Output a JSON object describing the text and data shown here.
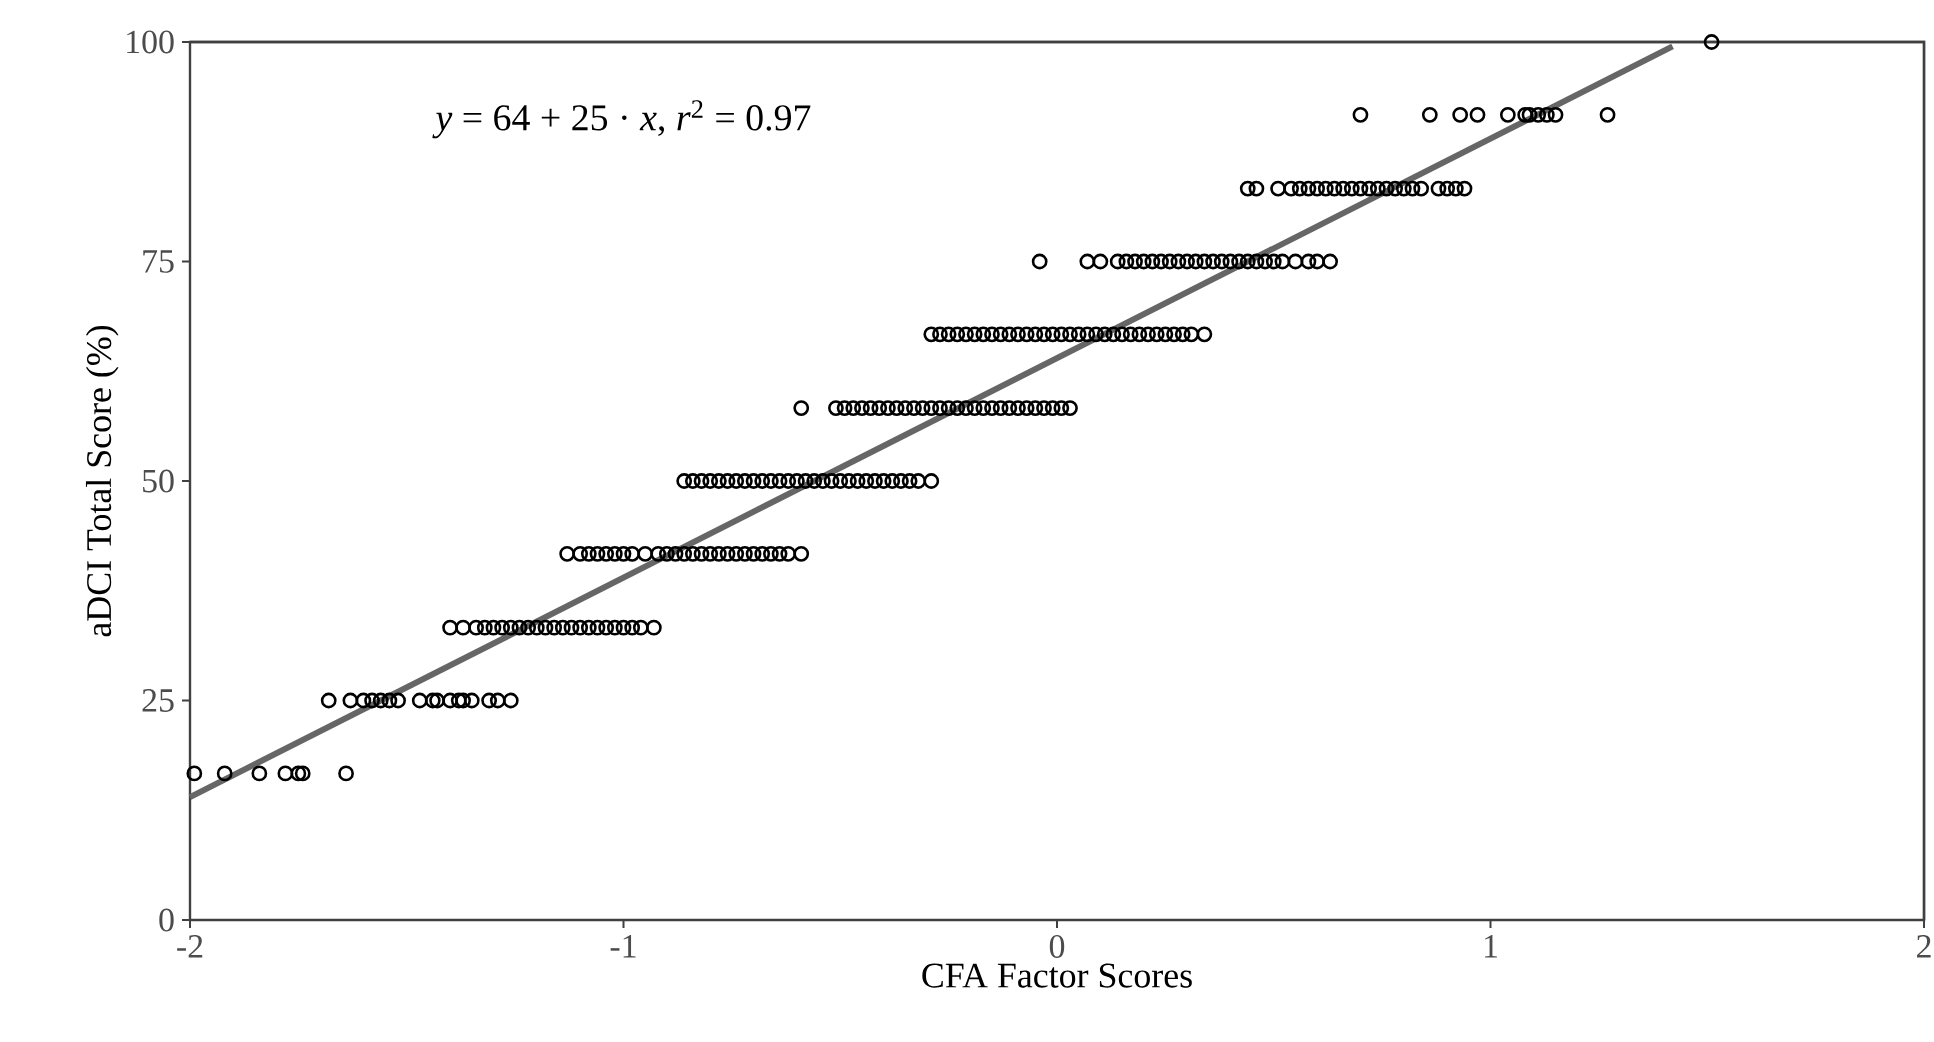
{
  "chart_data": {
    "type": "scatter",
    "xlabel": "CFA Factor Scores",
    "ylabel": "aDCI Total Score (%)",
    "annotations": [
      "*y* = 64 + 25 · *x*,  *r*$^{2}$ = 0.97"
    ],
    "xlim": [
      -2,
      2
    ],
    "ylim": [
      0,
      100
    ],
    "xticks": [
      -2,
      -1,
      0,
      1,
      2
    ],
    "yticks": [
      0,
      25,
      50,
      75,
      100
    ],
    "marker": "circle",
    "series": [
      {
        "color": "#000000",
        "x": [
          -1.99,
          -1.92,
          -1.84,
          -1.78,
          -1.75,
          -1.74,
          -1.64
        ],
        "values": [
          16.7,
          16.7,
          16.7,
          16.7,
          16.7,
          16.7,
          16.7
        ]
      },
      {
        "color": "#000000",
        "x": [
          -1.68,
          -1.63,
          -1.6,
          -1.58,
          -1.56,
          -1.54,
          -1.52,
          -1.47,
          -1.44,
          -1.43,
          -1.4,
          -1.38,
          -1.37,
          -1.35,
          -1.31,
          -1.29,
          -1.26
        ],
        "values": [
          25,
          25,
          25,
          25,
          25,
          25,
          25,
          25,
          25,
          25,
          25,
          25,
          25,
          25,
          25,
          25,
          25
        ]
      },
      {
        "color": "#000000",
        "x": [
          -1.4,
          -1.37,
          -1.34,
          -1.32,
          -1.3,
          -1.28,
          -1.26,
          -1.24,
          -1.22,
          -1.2,
          -1.18,
          -1.16,
          -1.14,
          -1.12,
          -1.1,
          -1.08,
          -1.06,
          -1.04,
          -1.02,
          -1.0,
          -0.98,
          -0.96,
          -0.93
        ],
        "values": [
          33.3,
          33.3,
          33.3,
          33.3,
          33.3,
          33.3,
          33.3,
          33.3,
          33.3,
          33.3,
          33.3,
          33.3,
          33.3,
          33.3,
          33.3,
          33.3,
          33.3,
          33.3,
          33.3,
          33.3,
          33.3,
          33.3,
          33.3
        ]
      },
      {
        "color": "#000000",
        "x": [
          -1.13,
          -1.1,
          -1.08,
          -1.06,
          -1.04,
          -1.02,
          -1.0,
          -0.98,
          -0.95,
          -0.92,
          -0.9,
          -0.88,
          -0.86,
          -0.84,
          -0.82,
          -0.8,
          -0.78,
          -0.76,
          -0.74,
          -0.72,
          -0.7,
          -0.68,
          -0.66,
          -0.64,
          -0.62,
          -0.59
        ],
        "values": [
          41.7,
          41.7,
          41.7,
          41.7,
          41.7,
          41.7,
          41.7,
          41.7,
          41.7,
          41.7,
          41.7,
          41.7,
          41.7,
          41.7,
          41.7,
          41.7,
          41.7,
          41.7,
          41.7,
          41.7,
          41.7,
          41.7,
          41.7,
          41.7,
          41.7,
          41.7
        ]
      },
      {
        "color": "#000000",
        "x": [
          -0.86,
          -0.84,
          -0.82,
          -0.8,
          -0.78,
          -0.76,
          -0.74,
          -0.72,
          -0.7,
          -0.68,
          -0.66,
          -0.64,
          -0.62,
          -0.6,
          -0.58,
          -0.56,
          -0.54,
          -0.52,
          -0.5,
          -0.48,
          -0.46,
          -0.44,
          -0.42,
          -0.4,
          -0.38,
          -0.36,
          -0.34,
          -0.32,
          -0.29
        ],
        "values": [
          50,
          50,
          50,
          50,
          50,
          50,
          50,
          50,
          50,
          50,
          50,
          50,
          50,
          50,
          50,
          50,
          50,
          50,
          50,
          50,
          50,
          50,
          50,
          50,
          50,
          50,
          50,
          50,
          50
        ]
      },
      {
        "color": "#000000",
        "x": [
          -0.59,
          -0.51,
          -0.49,
          -0.47,
          -0.45,
          -0.43,
          -0.41,
          -0.39,
          -0.37,
          -0.35,
          -0.33,
          -0.31,
          -0.29,
          -0.27,
          -0.25,
          -0.23,
          -0.21,
          -0.19,
          -0.17,
          -0.15,
          -0.13,
          -0.11,
          -0.09,
          -0.07,
          -0.05,
          -0.03,
          -0.01,
          0.01,
          0.03
        ],
        "values": [
          58.3,
          58.3,
          58.3,
          58.3,
          58.3,
          58.3,
          58.3,
          58.3,
          58.3,
          58.3,
          58.3,
          58.3,
          58.3,
          58.3,
          58.3,
          58.3,
          58.3,
          58.3,
          58.3,
          58.3,
          58.3,
          58.3,
          58.3,
          58.3,
          58.3,
          58.3,
          58.3,
          58.3,
          58.3
        ]
      },
      {
        "color": "#000000",
        "x": [
          -0.29,
          -0.27,
          -0.25,
          -0.23,
          -0.21,
          -0.19,
          -0.17,
          -0.15,
          -0.13,
          -0.11,
          -0.09,
          -0.07,
          -0.05,
          -0.03,
          -0.01,
          0.01,
          0.03,
          0.05,
          0.07,
          0.09,
          0.11,
          0.13,
          0.15,
          0.17,
          0.19,
          0.21,
          0.23,
          0.25,
          0.27,
          0.29,
          0.31,
          0.34
        ],
        "values": [
          66.7,
          66.7,
          66.7,
          66.7,
          66.7,
          66.7,
          66.7,
          66.7,
          66.7,
          66.7,
          66.7,
          66.7,
          66.7,
          66.7,
          66.7,
          66.7,
          66.7,
          66.7,
          66.7,
          66.7,
          66.7,
          66.7,
          66.7,
          66.7,
          66.7,
          66.7,
          66.7,
          66.7,
          66.7,
          66.7,
          66.7,
          66.7
        ]
      },
      {
        "color": "#000000",
        "x": [
          -0.04,
          0.07,
          0.1,
          0.14,
          0.16,
          0.18,
          0.2,
          0.22,
          0.24,
          0.26,
          0.28,
          0.3,
          0.32,
          0.34,
          0.36,
          0.38,
          0.4,
          0.42,
          0.44,
          0.46,
          0.48,
          0.5,
          0.52,
          0.55,
          0.58,
          0.6,
          0.63
        ],
        "values": [
          75,
          75,
          75,
          75,
          75,
          75,
          75,
          75,
          75,
          75,
          75,
          75,
          75,
          75,
          75,
          75,
          75,
          75,
          75,
          75,
          75,
          75,
          75,
          75,
          75,
          75,
          75
        ]
      },
      {
        "color": "#000000",
        "x": [
          0.44,
          0.46,
          0.51,
          0.54,
          0.56,
          0.58,
          0.6,
          0.62,
          0.64,
          0.66,
          0.68,
          0.7,
          0.72,
          0.74,
          0.76,
          0.78,
          0.8,
          0.82,
          0.84,
          0.88,
          0.9,
          0.92,
          0.94
        ],
        "values": [
          83.3,
          83.3,
          83.3,
          83.3,
          83.3,
          83.3,
          83.3,
          83.3,
          83.3,
          83.3,
          83.3,
          83.3,
          83.3,
          83.3,
          83.3,
          83.3,
          83.3,
          83.3,
          83.3,
          83.3,
          83.3,
          83.3,
          83.3
        ]
      },
      {
        "color": "#000000",
        "x": [
          0.7,
          0.86,
          0.93,
          0.97,
          1.04,
          1.08,
          1.09,
          1.11,
          1.13,
          1.15,
          1.27
        ],
        "values": [
          91.7,
          91.7,
          91.7,
          91.7,
          91.7,
          91.7,
          91.7,
          91.7,
          91.7,
          91.7,
          91.7
        ]
      },
      {
        "color": "#000000",
        "x": [
          1.51
        ],
        "values": [
          100
        ]
      },
      {
        "type": "line",
        "marker": "none",
        "color": "#666666",
        "x": [
          -2,
          1.42
        ],
        "values": [
          14,
          99.5
        ]
      }
    ]
  }
}
